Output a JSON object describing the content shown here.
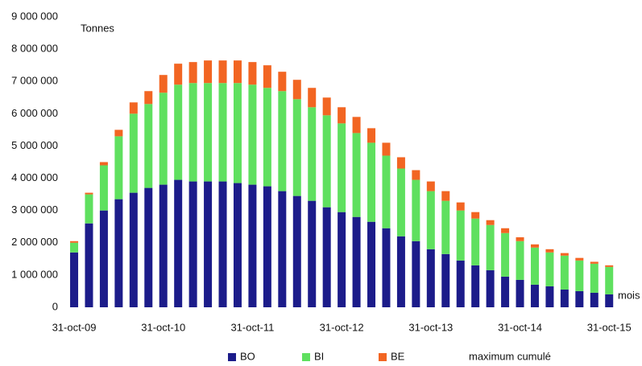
{
  "chart_data": {
    "type": "stacked_bar",
    "y_label": "Tonnes",
    "x_label": "mois",
    "legend_note": "maximum cumulé",
    "categories": [
      "31-oct-09",
      null,
      null,
      null,
      null,
      null,
      "31-oct-10",
      null,
      null,
      null,
      null,
      null,
      "31-oct-11",
      null,
      null,
      null,
      null,
      null,
      "31-oct-12",
      null,
      null,
      null,
      null,
      null,
      "31-oct-13",
      null,
      null,
      null,
      null,
      null,
      "31-oct-14",
      null,
      null,
      null,
      null,
      null,
      "31-oct-15"
    ],
    "series": [
      {
        "name": "BO",
        "color": "#1c1c8a",
        "values": [
          1700000,
          2600000,
          3000000,
          3350000,
          3550000,
          3700000,
          3800000,
          3950000,
          3900000,
          3900000,
          3900000,
          3850000,
          3800000,
          3750000,
          3600000,
          3450000,
          3300000,
          3100000,
          2950000,
          2800000,
          2650000,
          2450000,
          2200000,
          2050000,
          1800000,
          1650000,
          1450000,
          1300000,
          1150000,
          950000,
          850000,
          700000,
          650000,
          550000,
          500000,
          450000,
          400000
        ]
      },
      {
        "name": "BI",
        "color": "#5fe05f",
        "values": [
          300000,
          900000,
          1400000,
          1950000,
          2450000,
          2600000,
          2850000,
          2950000,
          3050000,
          3050000,
          3050000,
          3100000,
          3100000,
          3050000,
          3100000,
          3000000,
          2900000,
          2850000,
          2750000,
          2600000,
          2450000,
          2250000,
          2100000,
          1900000,
          1800000,
          1650000,
          1550000,
          1450000,
          1400000,
          1350000,
          1200000,
          1150000,
          1050000,
          1050000,
          950000,
          900000,
          850000
        ]
      },
      {
        "name": "BE",
        "color": "#f26522",
        "values": [
          50000,
          50000,
          100000,
          200000,
          350000,
          400000,
          550000,
          650000,
          650000,
          700000,
          700000,
          700000,
          700000,
          700000,
          600000,
          600000,
          600000,
          550000,
          500000,
          500000,
          450000,
          400000,
          350000,
          300000,
          300000,
          300000,
          250000,
          200000,
          150000,
          150000,
          120000,
          100000,
          100000,
          80000,
          80000,
          60000,
          50000
        ]
      }
    ],
    "ylim": [
      0,
      9000000
    ],
    "yticks": [
      0,
      {
        "value": 1000000,
        "label": "1 000 000"
      },
      {
        "value": 2000000,
        "label": "2 000 000"
      },
      {
        "value": 3000000,
        "label": "3 000 000"
      },
      {
        "value": 4000000,
        "label": "4 000 000"
      },
      {
        "value": 5000000,
        "label": "5 000 000"
      },
      {
        "value": 6000000,
        "label": "6 000 000"
      },
      {
        "value": 7000000,
        "label": "7 000 000"
      },
      {
        "value": 8000000,
        "label": "8 000 000"
      },
      {
        "value": 9000000,
        "label": "9 000 000"
      }
    ],
    "grid": false
  }
}
